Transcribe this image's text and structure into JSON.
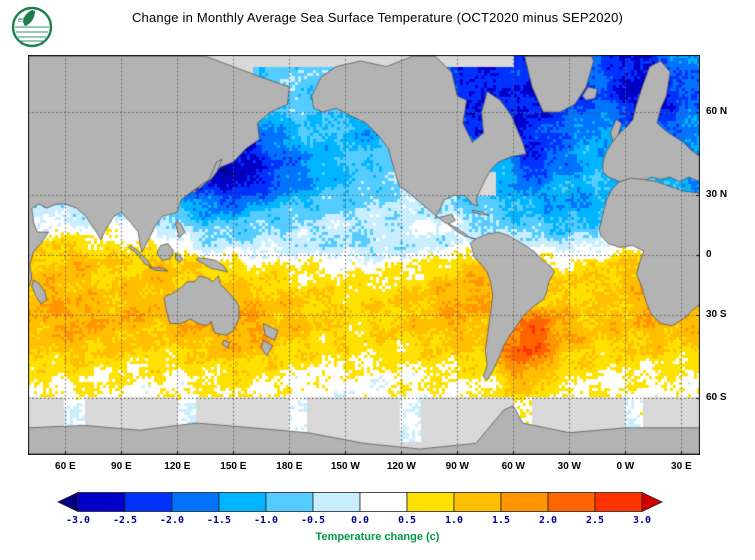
{
  "figure": {
    "title": "Change in Monthly Average Sea Surface Temperature (OCT2020 minus SEP2020)",
    "logo_text": "esrl",
    "logo_color": "#1b7f4a"
  },
  "chart_data": {
    "type": "heatmap",
    "title": "Change in Monthly Average Sea Surface Temperature (OCT2020 minus SEP2020)",
    "projection": {
      "kind": "mercator",
      "lon_range": [
        40,
        400
      ],
      "lat_range": [
        -72,
        72
      ]
    },
    "lat_ticks": [
      {
        "label": "60 N",
        "lat": 60
      },
      {
        "label": "30 N",
        "lat": 30
      },
      {
        "label": "0",
        "lat": 0
      },
      {
        "label": "30 S",
        "lat": -30
      },
      {
        "label": "60 S",
        "lat": -60
      }
    ],
    "lon_ticks": [
      {
        "label": "60 E",
        "lon": 60
      },
      {
        "label": "90 E",
        "lon": 90
      },
      {
        "label": "120 E",
        "lon": 120
      },
      {
        "label": "150 E",
        "lon": 150
      },
      {
        "label": "180 E",
        "lon": 180
      },
      {
        "label": "150 W",
        "lon": 210
      },
      {
        "label": "120 W",
        "lon": 240
      },
      {
        "label": "90 W",
        "lon": 270
      },
      {
        "label": "60 W",
        "lon": 300
      },
      {
        "label": "30 W",
        "lon": 330
      },
      {
        "label": "0 W",
        "lon": 360
      },
      {
        "label": "30 E",
        "lon": 390
      }
    ],
    "colorbar": {
      "label": "Temperature change  (c)",
      "label_color": "#009a44",
      "tick_color": "#00008b",
      "tick_labels": [
        "-3.0",
        "-2.5",
        "-2.0",
        "-1.5",
        "-1.0",
        "-0.5",
        "0.0",
        "0.5",
        "1.0",
        "1.5",
        "2.0",
        "2.5",
        "3.0"
      ],
      "levels": [
        -3,
        -2.5,
        -2,
        -1.5,
        -1,
        -0.5,
        0,
        0.5,
        1,
        1.5,
        2,
        2.5,
        3
      ],
      "colors": [
        "#00007f",
        "#0000c8",
        "#0032ff",
        "#0073ff",
        "#00b4ff",
        "#55ccff",
        "#c8eeff",
        "#ffffff",
        "#ffe100",
        "#ffbe00",
        "#ff9600",
        "#ff6400",
        "#ff3200",
        "#d40000"
      ]
    },
    "land_color": "#b3b3b3",
    "no_data_color": "#d9d9d9",
    "grid": {
      "comment": "SST change (C), lon centers 45E..395E step 10, lat centers 85N..85S step -10, null = no data",
      "lon_start": 45,
      "lon_step": 10,
      "lat_start": 85,
      "lat_step": -10,
      "values": [
        [
          null,
          null,
          null,
          null,
          null,
          null,
          null,
          null,
          null,
          null,
          null,
          null,
          null,
          null,
          null,
          null,
          null,
          null,
          null,
          null,
          null,
          null,
          null,
          null,
          null,
          null,
          null,
          null,
          null,
          null,
          null,
          null,
          null,
          null,
          null,
          null
        ],
        [
          null,
          null,
          null,
          null,
          null,
          null,
          null,
          null,
          null,
          null,
          null,
          null,
          null,
          null,
          null,
          null,
          null,
          null,
          null,
          null,
          null,
          null,
          null,
          null,
          null,
          null,
          -2,
          -2.5,
          -2,
          -1.5,
          -1.8,
          -2.2,
          -2.5,
          -2,
          -1.5,
          -1.2
        ],
        [
          null,
          null,
          null,
          null,
          null,
          null,
          null,
          null,
          null,
          null,
          null,
          null,
          -0.7,
          -0.8,
          -0.6,
          -0.8,
          -1,
          -1.2,
          -1,
          -1.2,
          -1.5,
          -1.8,
          -2,
          -2.3,
          -2.6,
          -2.2,
          -2.6,
          -2.8,
          -2.2,
          -2.4,
          -2,
          -2.4,
          -2.8,
          -3,
          -2.4,
          -2
        ],
        [
          null,
          null,
          null,
          null,
          null,
          null,
          null,
          null,
          null,
          null,
          -2.2,
          -2.4,
          -1.8,
          -1.3,
          -1,
          -0.9,
          -1,
          -1.2,
          -1.4,
          -1.2,
          -1.2,
          -1.2,
          -1.4,
          -2.4,
          -2.4,
          -2,
          -2.6,
          -2.2,
          -1.9,
          -1.6,
          -1.4,
          -1.5,
          -1.8,
          -2,
          -1.8,
          -1.6
        ],
        [
          null,
          null,
          null,
          null,
          null,
          null,
          null,
          null,
          -2.5,
          -2.8,
          -3,
          -2.8,
          -2.4,
          -2,
          -1.7,
          -1.4,
          -1.1,
          -1,
          -0.8,
          -0.7,
          -0.8,
          -1,
          -1,
          -1,
          -1,
          -1.2,
          -2.3,
          -2.5,
          -1.8,
          -1.5,
          -1.3,
          -1.2,
          -1.1,
          -1,
          -1.3,
          -1.5
        ],
        [
          null,
          null,
          null,
          null,
          null,
          null,
          null,
          null,
          -2.2,
          -2.5,
          -2.6,
          -2.8,
          -2.4,
          -2,
          -1.6,
          -1.3,
          -1.1,
          -0.9,
          -0.8,
          -0.6,
          -0.5,
          -0.5,
          null,
          null,
          null,
          -1.2,
          -1.8,
          -1.5,
          -1.3,
          -1.2,
          -1,
          -0.9,
          -0.8,
          -0.8,
          -1.4,
          -1.6
        ],
        [
          -0.4,
          -0.5,
          -0.4,
          -0.3,
          -0.3,
          -0.5,
          -0.6,
          -0.9,
          -1.2,
          -1.6,
          -1.8,
          -1.5,
          -1.2,
          -1,
          -0.9,
          -0.8,
          -0.7,
          -0.6,
          -0.5,
          -0.4,
          -0.3,
          -0.4,
          -0.5,
          -0.7,
          -0.8,
          -1,
          -1.2,
          -1.3,
          -1.4,
          -1.5,
          -1.3,
          -1.2,
          -1,
          -0.8,
          -0.6,
          -0.5
        ],
        [
          0.2,
          0.3,
          0.1,
          -0.1,
          0.2,
          0.3,
          0.1,
          -0.2,
          -0.5,
          -0.8,
          -0.9,
          -0.8,
          -0.6,
          -0.5,
          -0.4,
          -0.4,
          -0.3,
          -0.3,
          -0.2,
          -0.2,
          -0.1,
          0.1,
          0.2,
          -0.3,
          -0.5,
          -0.6,
          -0.8,
          -0.9,
          -1,
          -0.9,
          -0.8,
          -0.6,
          -0.5,
          -0.4,
          -0.2,
          0
        ],
        [
          0.8,
          1,
          0.9,
          0.8,
          0.7,
          0.6,
          0.4,
          0.3,
          0.1,
          -0.2,
          -0.3,
          -0.3,
          -0.2,
          -0.2,
          -0.3,
          -0.3,
          -0.4,
          -0.5,
          -0.5,
          -0.4,
          -0.4,
          -0.3,
          -0.2,
          0,
          -0.2,
          0.2,
          0.1,
          -0.2,
          -0.3,
          -0.2,
          0,
          0.2,
          0.4,
          0.5,
          0.6,
          0.7
        ],
        [
          1,
          1.2,
          1.3,
          1.2,
          1,
          1,
          1.2,
          1.3,
          1,
          0.8,
          0.7,
          0.6,
          0.5,
          0.5,
          0.5,
          0.4,
          0.3,
          0.3,
          0.3,
          0.4,
          0.5,
          0.6,
          0.8,
          1,
          1.2,
          0.8,
          0.6,
          0.5,
          0.6,
          0.7,
          0.8,
          0.9,
          1,
          1,
          0.9,
          0.9
        ],
        [
          1.2,
          1.3,
          1.2,
          1.1,
          1,
          1.1,
          1.2,
          1.1,
          1,
          1,
          1.1,
          1,
          0.9,
          0.8,
          0.8,
          0.7,
          0.7,
          0.6,
          0.6,
          0.7,
          0.8,
          1,
          1.2,
          1.4,
          1.5,
          1,
          0.8,
          0.8,
          0.9,
          1,
          1,
          1.1,
          1.2,
          1.1,
          1,
          1.1
        ],
        [
          1.4,
          1.5,
          1.4,
          1.3,
          1.2,
          1.3,
          1.4,
          1.2,
          1.1,
          1.2,
          1.3,
          1.4,
          1.3,
          1.2,
          1.1,
          1,
          0.9,
          0.9,
          0.9,
          1,
          1.1,
          1.2,
          1.4,
          1.6,
          1.4,
          1,
          1.1,
          1.2,
          1.1,
          1,
          1,
          1.1,
          1.2,
          1.3,
          1.2,
          1.2
        ],
        [
          1.3,
          1.5,
          1.6,
          1.5,
          1.4,
          1.3,
          1.2,
          1.3,
          1.4,
          1.5,
          1.6,
          1.7,
          1.5,
          1.3,
          1.1,
          1,
          0.9,
          0.9,
          0.9,
          1,
          1.1,
          1.2,
          1.3,
          1.4,
          1.2,
          1.5,
          2,
          2.4,
          1.6,
          1.3,
          1.2,
          1.2,
          1.3,
          1.4,
          1.3,
          1.3
        ],
        [
          1,
          1.1,
          1.2,
          1.1,
          1,
          1,
          0.9,
          0.9,
          1,
          1.1,
          1.2,
          1.3,
          1.2,
          1,
          0.9,
          0.8,
          0.8,
          0.7,
          0.7,
          0.8,
          0.8,
          0.9,
          0.9,
          1,
          1.1,
          1.8,
          2.6,
          2.2,
          1.4,
          1.1,
          1,
          0.9,
          1,
          1,
          0.9,
          0.9
        ],
        [
          0.5,
          0.5,
          0.6,
          0.5,
          0.5,
          0.4,
          0.4,
          0.4,
          0.5,
          0.5,
          0.6,
          0.6,
          0.5,
          0.4,
          0.4,
          0.3,
          0.3,
          0.3,
          0.3,
          0.3,
          0.4,
          0.4,
          0.4,
          0.5,
          0.5,
          0.9,
          1.4,
          1,
          0.6,
          0.5,
          0.4,
          0.4,
          0.4,
          0.4,
          0.4,
          0.4
        ],
        [
          null,
          null,
          0,
          null,
          null,
          null,
          null,
          null,
          0,
          null,
          null,
          null,
          null,
          null,
          0,
          null,
          null,
          null,
          null,
          null,
          0,
          null,
          null,
          null,
          null,
          null,
          0.1,
          null,
          null,
          null,
          null,
          null,
          0,
          null,
          null,
          null
        ],
        [
          null,
          null,
          null,
          null,
          null,
          null,
          null,
          null,
          null,
          null,
          null,
          null,
          null,
          null,
          null,
          null,
          null,
          null,
          null,
          null,
          null,
          null,
          null,
          null,
          null,
          null,
          null,
          null,
          null,
          null,
          null,
          null,
          null,
          null,
          null,
          null
        ],
        [
          null,
          null,
          null,
          null,
          null,
          null,
          null,
          null,
          null,
          null,
          null,
          null,
          null,
          null,
          null,
          null,
          null,
          null,
          null,
          null,
          null,
          null,
          null,
          null,
          null,
          null,
          null,
          null,
          null,
          null,
          null,
          null,
          null,
          null,
          null,
          null
        ]
      ]
    }
  }
}
